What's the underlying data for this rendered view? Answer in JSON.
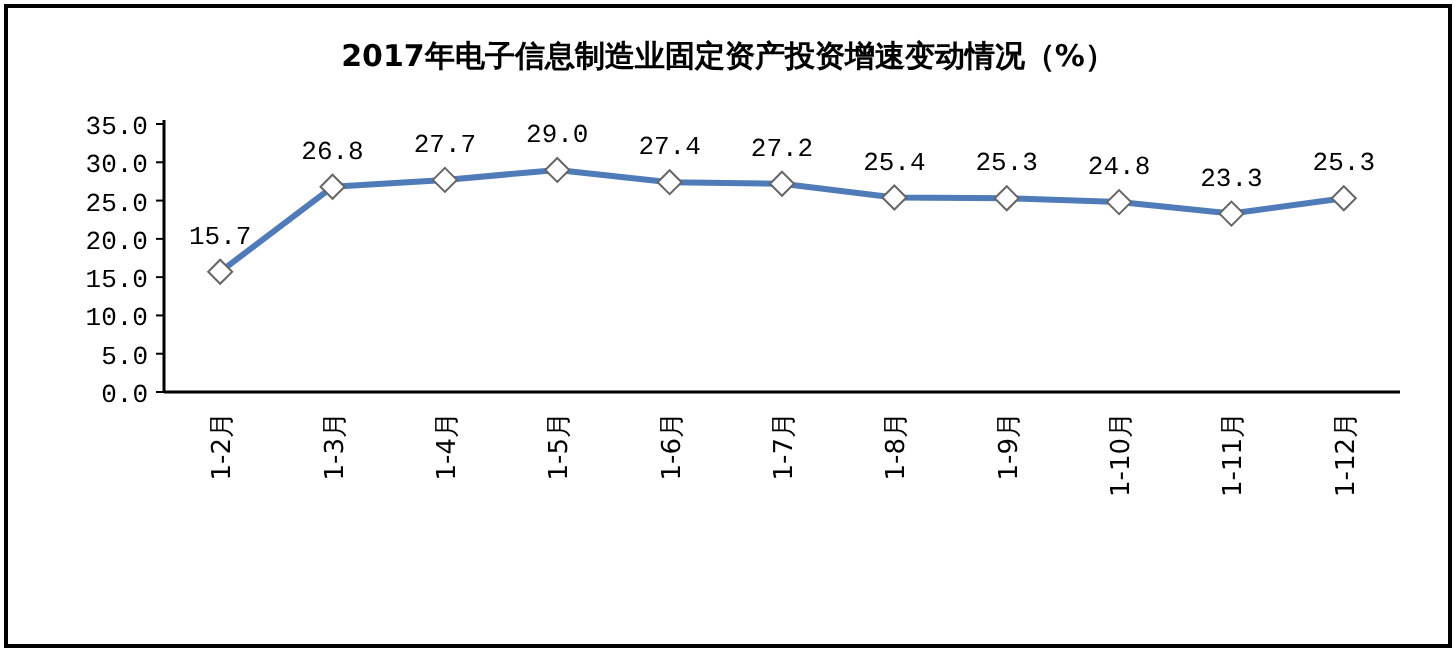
{
  "chart_data": {
    "type": "line",
    "title": "2017年电子信息制造业固定资产投资增速变动情况（%）",
    "categories": [
      "1-2月",
      "1-3月",
      "1-4月",
      "1-5月",
      "1-6月",
      "1-7月",
      "1-8月",
      "1-9月",
      "1-10月",
      "1-11月",
      "1-12月"
    ],
    "values": [
      15.7,
      26.8,
      27.7,
      29.0,
      27.4,
      27.2,
      25.4,
      25.3,
      24.8,
      23.3,
      25.3
    ],
    "value_labels": [
      "15.7",
      "26.8",
      "27.7",
      "29.0",
      "27.4",
      "27.2",
      "25.4",
      "25.3",
      "24.8",
      "23.3",
      "25.3"
    ],
    "color": "#4f7bb8",
    "marker": "diamond",
    "line_style": "solid",
    "grid": false,
    "ylim": [
      0,
      35
    ],
    "yticks": [
      {
        "value": 0,
        "label": "0.0"
      },
      {
        "value": 5,
        "label": "5.0"
      },
      {
        "value": 10,
        "label": "10.0"
      },
      {
        "value": 15,
        "label": "15.0"
      },
      {
        "value": 20,
        "label": "20.0"
      },
      {
        "value": 25,
        "label": "25.0"
      },
      {
        "value": 30,
        "label": "30.0"
      },
      {
        "value": 35,
        "label": "35.0"
      }
    ]
  }
}
